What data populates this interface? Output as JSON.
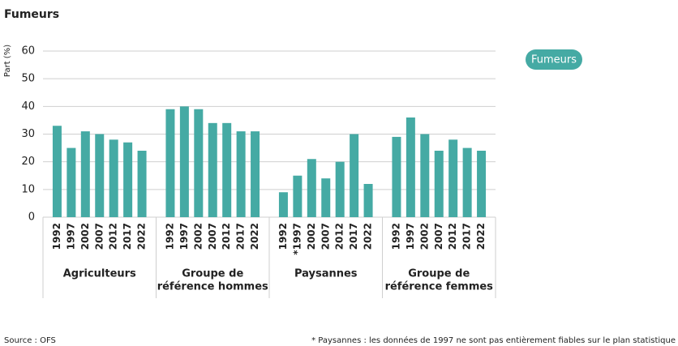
{
  "chart_data": {
    "type": "bar",
    "title": "Fumeurs",
    "y_label": "Part (%)",
    "groups": [
      {
        "label": [
          "Agriculteurs"
        ],
        "categories": [
          "1992",
          "1997",
          "2002",
          "2007",
          "2012",
          "2017",
          "2022"
        ]
      },
      {
        "label": [
          "Groupe de",
          "référence hommes"
        ],
        "categories": [
          "1992",
          "1997",
          "2002",
          "2007",
          "2012",
          "2017",
          "2022"
        ]
      },
      {
        "label": [
          "Paysannes"
        ],
        "categories": [
          "1992",
          "*1997",
          "2002",
          "2007",
          "2012",
          "2017",
          "2022"
        ]
      },
      {
        "label": [
          "Groupe de",
          "référence femmes"
        ],
        "categories": [
          "1992",
          "1997",
          "2002",
          "2007",
          "2012",
          "2017",
          "2022"
        ]
      }
    ],
    "series": [
      {
        "name": "Fumeurs",
        "color": "#45aaa4",
        "values": [
          33,
          25,
          31,
          30,
          28,
          27,
          24,
          39,
          40,
          39,
          34,
          34,
          31,
          31,
          9,
          15,
          21,
          14,
          20,
          30,
          12,
          29,
          36,
          30,
          24,
          28,
          25,
          24
        ]
      }
    ],
    "ylim": [
      0,
      60
    ],
    "yticks": [
      0,
      10,
      20,
      30,
      40,
      50,
      60
    ],
    "grid": true,
    "source": "Source : OFS",
    "footnote": "* Paysannes : les données de 1997 ne sont pas entièrement fiables sur le plan statistique"
  }
}
